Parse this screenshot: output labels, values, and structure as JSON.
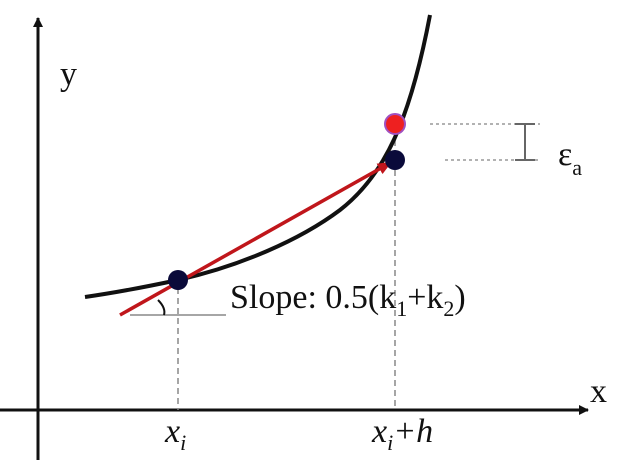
{
  "axes": {
    "y_label": "y",
    "x_label": "x"
  },
  "ticks": {
    "xi": {
      "base": "x",
      "sub": "i"
    },
    "xih": {
      "base": "x",
      "sub": "i",
      "rest": "+h"
    }
  },
  "slope": {
    "text": "Slope: 0.5(k",
    "sub1": "1",
    "mid": "+k",
    "sub2": "2",
    "end": ")"
  },
  "error": {
    "symbol": "ε",
    "sub": "a"
  }
}
